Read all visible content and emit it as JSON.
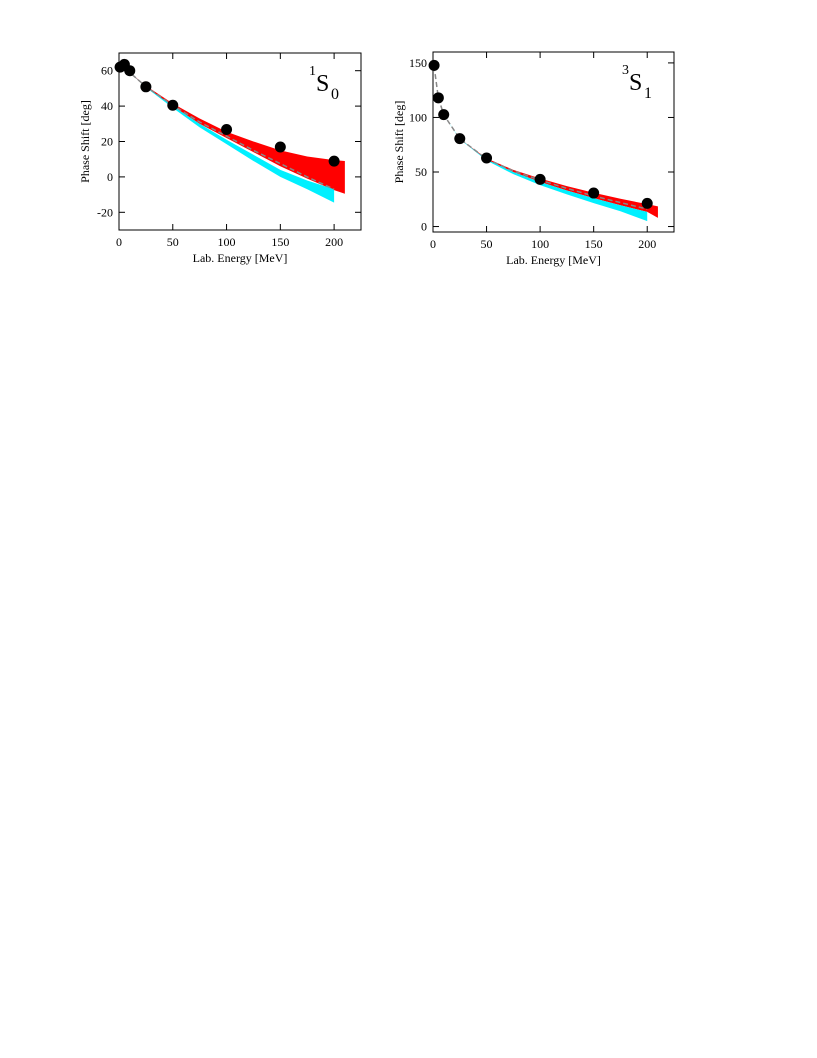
{
  "chart_data": [
    {
      "type": "scatter",
      "annotation": {
        "pre": "1",
        "text": "S",
        "sub": "0"
      },
      "xlabel": "Lab. Energy  [MeV]",
      "ylabel": "Phase Shift  [deg]",
      "xlim": [
        0,
        225
      ],
      "ylim": [
        -30,
        70
      ],
      "xticks": [
        0,
        50,
        100,
        150,
        200
      ],
      "yticks": [
        -20,
        0,
        20,
        40,
        60
      ],
      "series": [
        {
          "kind": "band",
          "color": "#ff0000",
          "x": [
            0,
            10,
            25,
            50,
            75,
            100,
            125,
            150,
            175,
            200,
            210
          ],
          "upper": [
            63,
            59,
            51.5,
            41.5,
            33,
            25.5,
            20,
            15,
            11.5,
            9.5,
            9
          ],
          "lower": [
            63,
            59,
            50.5,
            40,
            30,
            22,
            14,
            6,
            -1,
            -7.5,
            -9.5
          ]
        },
        {
          "kind": "band",
          "color": "#00f0ff",
          "x": [
            0,
            10,
            25,
            50,
            75,
            100,
            125,
            150,
            175,
            200
          ],
          "upper": [
            63,
            59,
            51,
            40,
            30,
            21,
            12.5,
            4,
            -2,
            -7
          ],
          "lower": [
            63,
            59,
            50.5,
            39,
            28,
            18.5,
            9,
            0,
            -7,
            -14.5
          ]
        },
        {
          "kind": "line",
          "color": "#888888",
          "dashed": true,
          "x": [
            0,
            10,
            25,
            50,
            75,
            100,
            125,
            150,
            175,
            200
          ],
          "values": [
            63,
            59,
            51,
            40.5,
            31,
            23,
            15,
            7.5,
            0,
            -7
          ]
        },
        {
          "kind": "scatter",
          "color": "#000000",
          "x": [
            1,
            5,
            10,
            25,
            50,
            100,
            150,
            200
          ],
          "values": [
            62,
            63.6,
            60,
            50.9,
            40.5,
            26.8,
            16.9,
            8.9
          ]
        }
      ]
    },
    {
      "type": "scatter",
      "annotation": {
        "pre": "3",
        "text": "S",
        "sub": "1"
      },
      "xlabel": "Lab. Energy  [MeV]",
      "ylabel": "Phase Shift  [deg]",
      "xlim": [
        0,
        225
      ],
      "ylim": [
        -5,
        160
      ],
      "xticks": [
        0,
        50,
        100,
        150,
        200
      ],
      "yticks": [
        0,
        50,
        100,
        150
      ],
      "series": [
        {
          "kind": "band",
          "color": "#ff0000",
          "x": [
            1,
            5,
            10,
            25,
            50,
            75,
            100,
            125,
            150,
            175,
            200,
            210
          ],
          "upper": [
            147,
            118,
            102.5,
            80.5,
            62.5,
            52,
            44,
            37,
            31,
            25.5,
            20.5,
            18.5
          ],
          "lower": [
            147,
            118,
            102.5,
            80.5,
            61.5,
            50,
            41,
            33,
            26,
            19.5,
            13.5,
            8
          ]
        },
        {
          "kind": "band",
          "color": "#00f0ff",
          "x": [
            1,
            5,
            10,
            25,
            50,
            75,
            100,
            125,
            150,
            175,
            200
          ],
          "upper": [
            147,
            118,
            102.5,
            80.5,
            61.5,
            50,
            41,
            33,
            26,
            19.5,
            13.5
          ],
          "lower": [
            147,
            118,
            102.5,
            80,
            60.5,
            48,
            38,
            29.5,
            21.5,
            14,
            5
          ]
        },
        {
          "kind": "line",
          "color": "#888888",
          "dashed": true,
          "x": [
            1,
            5,
            10,
            25,
            50,
            75,
            100,
            125,
            150,
            175,
            200
          ],
          "values": [
            147,
            118,
            102.5,
            80.5,
            62,
            51,
            42.5,
            35,
            28,
            22,
            16
          ]
        },
        {
          "kind": "scatter",
          "color": "#000000",
          "x": [
            1,
            5,
            10,
            25,
            50,
            100,
            150,
            200
          ],
          "values": [
            147.7,
            118,
            102.6,
            80.6,
            62.8,
            43.2,
            30.7,
            21.2
          ]
        }
      ]
    }
  ]
}
